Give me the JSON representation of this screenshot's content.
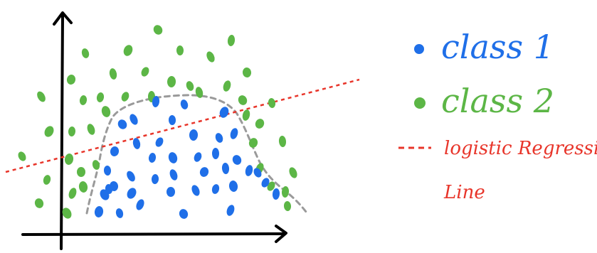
{
  "colors": {
    "background": "#ffffff",
    "axis": "#000000",
    "class1": "#1f6fe8",
    "class2": "#5cb646",
    "boundary": "#9a9a9a",
    "regression_line": "#e8352a"
  },
  "legend": {
    "class1_label": "class 1",
    "class2_label": "class 2",
    "regression_label_line1": "logistic Regression's",
    "regression_label_line2": "Line"
  },
  "points": {
    "class1_count": 40,
    "class2_count": 43
  }
}
